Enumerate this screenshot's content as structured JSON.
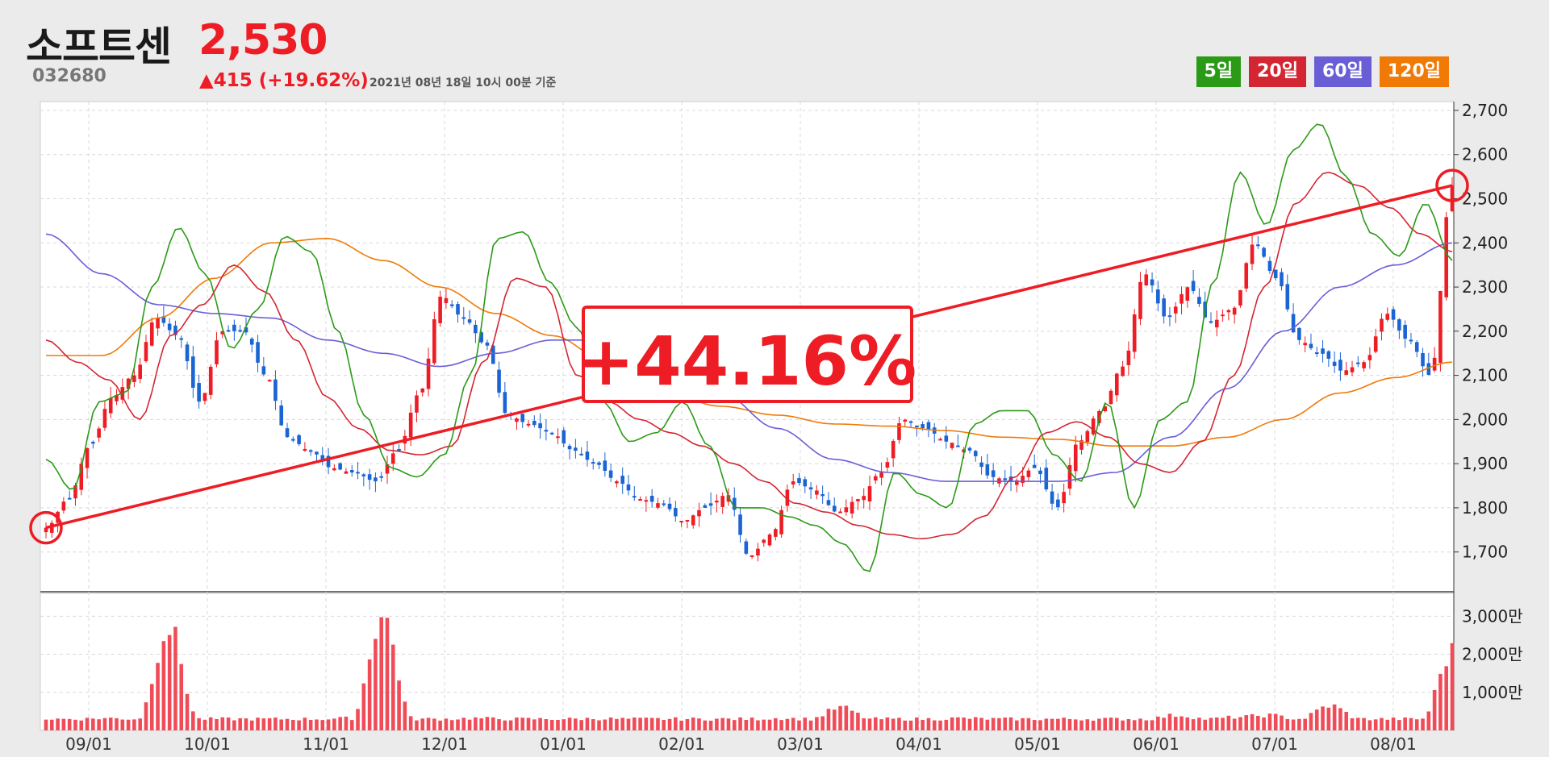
{
  "header": {
    "name": "소프트센",
    "code": "032680",
    "price": "2,530",
    "change": "▲415 (+19.62%)",
    "timestamp": "2021년 08년 18일 10시 00분 기준"
  },
  "legend": [
    {
      "label": "5일",
      "color": "#2b9a17"
    },
    {
      "label": "20일",
      "color": "#d42632"
    },
    {
      "label": "60일",
      "color": "#6a5ed7"
    },
    {
      "label": "120일",
      "color": "#f07a05"
    }
  ],
  "annotation": {
    "text": "+44.16%",
    "color": "#ee1c24"
  },
  "chart_data": {
    "type": "candlestick",
    "x_tick_labels": [
      "09/01",
      "10/01",
      "11/01",
      "12/01",
      "01/01",
      "02/01",
      "03/01",
      "04/01",
      "05/01",
      "06/01",
      "07/01",
      "08/01"
    ],
    "price_axis": {
      "ticks": [
        1700,
        1800,
        1900,
        2000,
        2100,
        2200,
        2300,
        2400,
        2500,
        2600,
        2700
      ],
      "labels": [
        "1,700",
        "1,800",
        "1,900",
        "2,000",
        "2,100",
        "2,200",
        "2,300",
        "2,400",
        "2,500",
        "2,600",
        "2,700"
      ],
      "range": [
        1610,
        2720
      ]
    },
    "volume_axis": {
      "ticks": [
        10000000,
        20000000,
        30000000
      ],
      "labels": [
        "1,000만",
        "2,000만",
        "3,000만"
      ],
      "range": [
        0,
        36000000
      ]
    },
    "trend_line": {
      "start_close": 1755,
      "end_close": 2530
    },
    "close_keypoints": [
      1755,
      1820,
      1940,
      2050,
      2100,
      2230,
      2190,
      2040,
      2200,
      2200,
      2100,
      1960,
      1930,
      1890,
      1880,
      1860,
      1930,
      2060,
      2280,
      2230,
      2170,
      2010,
      1990,
      1970,
      1930,
      1900,
      1860,
      1820,
      1810,
      1770,
      1800,
      1830,
      1690,
      1740,
      1860,
      1840,
      1790,
      1820,
      1880,
      2000,
      1980,
      1950,
      1930,
      1870,
      1860,
      1890,
      1800,
      1950,
      2020,
      2120,
      2330,
      2230,
      2300,
      2220,
      2250,
      2400,
      2320,
      2180,
      2150,
      2110,
      2130,
      2240,
      2180,
      2100,
      2530
    ],
    "ma_keypoints": {
      "ma5": [
        1910,
        1840,
        2040,
        2060,
        2300,
        2435,
        2330,
        2160,
        2250,
        2415,
        2380,
        2200,
        2010,
        1890,
        1870,
        1920,
        2100,
        2410,
        2425,
        2310,
        2210,
        2040,
        1950,
        1970,
        2040,
        1940,
        1800,
        1800,
        1780,
        1760,
        1720,
        1655,
        1880,
        1830,
        1800,
        1990,
        2020,
        2020,
        1920,
        1860,
        2040,
        1800,
        2000,
        2040,
        2310,
        2560,
        2440,
        2610,
        2670,
        2550,
        2420,
        2370,
        2490,
        2360
      ],
      "ma20": [
        2180,
        2130,
        2090,
        2000,
        2190,
        2260,
        2350,
        2290,
        2180,
        2050,
        1980,
        1930,
        1920,
        1940,
        2130,
        2320,
        2300,
        2100,
        2040,
        2000,
        1970,
        1940,
        1900,
        1860,
        1810,
        1790,
        1760,
        1740,
        1730,
        1740,
        1780,
        1870,
        1970,
        1995,
        1960,
        1900,
        1880,
        1950,
        2100,
        2300,
        2490,
        2560,
        2530,
        2480,
        2420,
        2380
      ],
      "ma60": [
        2420,
        2330,
        2260,
        2240,
        2230,
        2180,
        2150,
        2120,
        2150,
        2180,
        2180,
        2120,
        2060,
        1980,
        1910,
        1880,
        1860,
        1860,
        1860,
        1880,
        1960,
        2070,
        2200,
        2300,
        2350,
        2400
      ],
      "ma120": [
        2145,
        2145,
        2230,
        2320,
        2400,
        2410,
        2360,
        2300,
        2240,
        2190,
        2130,
        2060,
        2030,
        2010,
        1990,
        1985,
        1975,
        1960,
        1955,
        1940,
        1940,
        1960,
        2000,
        2060,
        2095,
        2130
      ]
    },
    "volume_keypoints": [
      3000000,
      3000000,
      3200000,
      3000000,
      27000000,
      3000000,
      3000000,
      3000000,
      3000000,
      3000000,
      3200000,
      30000000,
      3000000,
      3000000,
      3200000,
      3000000,
      3000000,
      3000000,
      3100000,
      3000000,
      3000000,
      3000000,
      3000000,
      3000000,
      3200000,
      3000000,
      6000000,
      3000000,
      3000000,
      3000000,
      3200000,
      3000000,
      3000000,
      3000000,
      3000000,
      3000000,
      3000000,
      4000000,
      3000000,
      3500000,
      4000000,
      3000000,
      6500000,
      3000000,
      3000000,
      3000000,
      20500000
    ]
  }
}
